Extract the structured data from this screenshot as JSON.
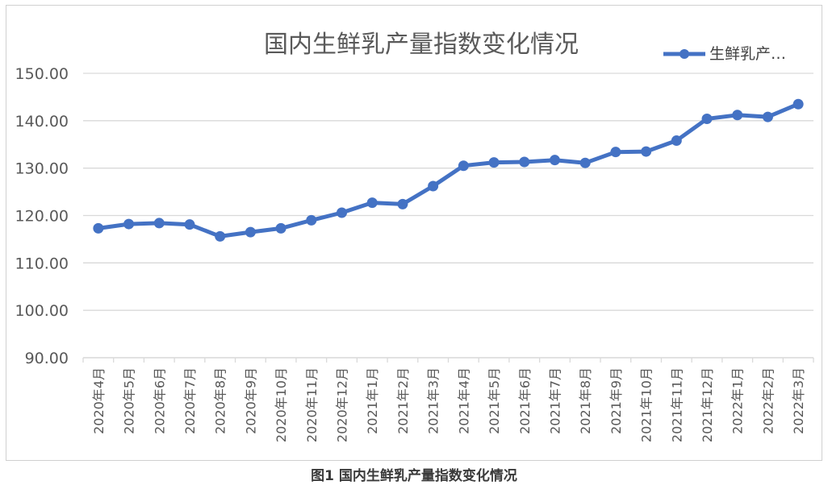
{
  "chart_data": {
    "type": "line",
    "title": "国内生鲜乳产量指数变化情况",
    "categories": [
      "2020年4月",
      "2020年5月",
      "2020年6月",
      "2020年7月",
      "2020年8月",
      "2020年9月",
      "2020年10月",
      "2020年11月",
      "2020年12月",
      "2021年1月",
      "2021年2月",
      "2021年3月",
      "2021年4月",
      "2021年5月",
      "2021年6月",
      "2021年7月",
      "2021年8月",
      "2021年9月",
      "2021年10月",
      "2021年11月",
      "2021年12月",
      "2022年1月",
      "2022年2月",
      "2022年3月"
    ],
    "series": [
      {
        "name": "生鲜乳产…",
        "color": "#4472c4",
        "values": [
          117.3,
          118.2,
          118.4,
          118.1,
          115.6,
          116.5,
          117.3,
          119.0,
          120.6,
          122.7,
          122.4,
          126.2,
          130.5,
          131.2,
          131.3,
          131.7,
          131.1,
          133.4,
          133.5,
          135.8,
          140.4,
          141.2,
          140.8,
          143.5
        ]
      }
    ],
    "yticks": [
      "90.00",
      "100.00",
      "110.00",
      "120.00",
      "130.00",
      "140.00",
      "150.00"
    ],
    "ylim": [
      90,
      150
    ],
    "grid": true,
    "legend": "top-right",
    "xlabel": "",
    "ylabel": ""
  },
  "caption": "图1  国内生鲜乳产量指数变化情况"
}
